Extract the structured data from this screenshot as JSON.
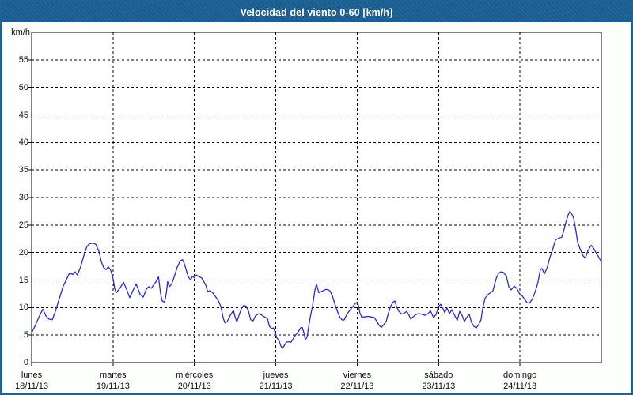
{
  "window": {
    "title": "Velocidad del viento 0-60 [km/h]"
  },
  "colors": {
    "title_bar": "#1D6295",
    "title_text": "#FFFFFF",
    "frame_border": "#1D6295",
    "background": "#FDFFFD",
    "grid": "#000000",
    "text": "#0C0C0C",
    "line": "#2A2AC8"
  },
  "chart_data": {
    "type": "line",
    "title": "Velocidad del viento 0-60 [km/h]",
    "xlabel": "",
    "ylabel": "km/h",
    "ylim": [
      0,
      60
    ],
    "y_ticks": [
      0,
      5,
      10,
      15,
      20,
      25,
      30,
      35,
      40,
      45,
      50,
      55
    ],
    "xlim_hours": [
      0,
      168
    ],
    "grid": true,
    "legend": "none",
    "x_ticks": [
      {
        "hour": 0,
        "day": "lunes",
        "date": "18/11/13"
      },
      {
        "hour": 24,
        "day": "martes",
        "date": "19/11/13"
      },
      {
        "hour": 48,
        "day": "miércoles",
        "date": "20/11/13"
      },
      {
        "hour": 72,
        "day": "jueves",
        "date": "21/11/13"
      },
      {
        "hour": 96,
        "day": "viernes",
        "date": "22/11/13"
      },
      {
        "hour": 120,
        "day": "sábado",
        "date": "23/11/13"
      },
      {
        "hour": 144,
        "day": "domingo",
        "date": "24/11/13"
      }
    ],
    "series": [
      {
        "name": "Velocidad del viento",
        "unit": "km/h",
        "x_unit": "hours_since_mon_00h",
        "points": [
          [
            0,
            5.4
          ],
          [
            1.2,
            6.9
          ],
          [
            2.3,
            8.5
          ],
          [
            3.3,
            9.7
          ],
          [
            4.2,
            8.5
          ],
          [
            5.1,
            7.9
          ],
          [
            6.1,
            7.8
          ],
          [
            7,
            9.3
          ],
          [
            8.2,
            11.7
          ],
          [
            9.3,
            13.9
          ],
          [
            10.5,
            15.4
          ],
          [
            11.2,
            16.3
          ],
          [
            12.1,
            16
          ],
          [
            12.8,
            16.5
          ],
          [
            13.5,
            15.9
          ],
          [
            14.5,
            17.5
          ],
          [
            15.6,
            19.9
          ],
          [
            16.3,
            21.1
          ],
          [
            17,
            21.6
          ],
          [
            18,
            21.7
          ],
          [
            18.9,
            21.5
          ],
          [
            19.8,
            20.3
          ],
          [
            20.5,
            18.4
          ],
          [
            21.2,
            17.3
          ],
          [
            21.9,
            16.9
          ],
          [
            22.6,
            17.4
          ],
          [
            23.3,
            16.8
          ],
          [
            24,
            15.3
          ],
          [
            24.5,
            13.4
          ],
          [
            25,
            12.7
          ],
          [
            26.1,
            13.6
          ],
          [
            27.1,
            14.6
          ],
          [
            28,
            13.3
          ],
          [
            28.9,
            11.8
          ],
          [
            29.9,
            13.1
          ],
          [
            30.8,
            14.3
          ],
          [
            32,
            12.4
          ],
          [
            32.9,
            11.9
          ],
          [
            33.8,
            13.3
          ],
          [
            34.5,
            13.8
          ],
          [
            35.3,
            13.5
          ],
          [
            36.2,
            14.3
          ],
          [
            37,
            15
          ],
          [
            37.4,
            15.6
          ],
          [
            38,
            12.6
          ],
          [
            38.5,
            11.2
          ],
          [
            39.2,
            11
          ],
          [
            39.7,
            12.5
          ],
          [
            40.1,
            14.7
          ],
          [
            40.6,
            13.8
          ],
          [
            41.3,
            14.3
          ],
          [
            42,
            15.5
          ],
          [
            42.9,
            17.3
          ],
          [
            43.8,
            18.5
          ],
          [
            44.5,
            18.7
          ],
          [
            45,
            18
          ],
          [
            45.5,
            17
          ],
          [
            46.2,
            15.6
          ],
          [
            46.9,
            15
          ],
          [
            47.4,
            15.7
          ],
          [
            48,
            15.4
          ],
          [
            48.6,
            15.9
          ],
          [
            49.4,
            15.6
          ],
          [
            50.1,
            15.4
          ],
          [
            50.8,
            14.7
          ],
          [
            51.4,
            14
          ],
          [
            51.9,
            12.9
          ],
          [
            52.6,
            13.1
          ],
          [
            53.5,
            12.6
          ],
          [
            54.2,
            12
          ],
          [
            55.1,
            11.2
          ],
          [
            55.8,
            10.2
          ],
          [
            56.5,
            8.1
          ],
          [
            57,
            7.2
          ],
          [
            57.7,
            7.5
          ],
          [
            58.6,
            8.6
          ],
          [
            59.5,
            9.5
          ],
          [
            60,
            8.3
          ],
          [
            60.5,
            7.4
          ],
          [
            61.2,
            8.7
          ],
          [
            62,
            10
          ],
          [
            62.6,
            10.4
          ],
          [
            63.3,
            10.2
          ],
          [
            63.9,
            9.4
          ],
          [
            64.6,
            7.8
          ],
          [
            65.3,
            7.6
          ],
          [
            66,
            8.5
          ],
          [
            67,
            8.9
          ],
          [
            67.7,
            8.7
          ],
          [
            68.4,
            8.4
          ],
          [
            69,
            8.2
          ],
          [
            69.6,
            7.9
          ],
          [
            70.1,
            6.6
          ],
          [
            70.8,
            6.2
          ],
          [
            71.3,
            6.3
          ],
          [
            71.7,
            5.7
          ],
          [
            72.3,
            4.5
          ],
          [
            73,
            3.9
          ],
          [
            73.5,
            3
          ],
          [
            74,
            2.6
          ],
          [
            74.7,
            3.3
          ],
          [
            75.1,
            3.7
          ],
          [
            75.8,
            3.8
          ],
          [
            76.5,
            3.7
          ],
          [
            77,
            4.2
          ],
          [
            77.7,
            4.9
          ],
          [
            78.6,
            5.6
          ],
          [
            79.3,
            6.3
          ],
          [
            79.8,
            6.4
          ],
          [
            80.3,
            5.4
          ],
          [
            80.7,
            4.2
          ],
          [
            81.2,
            4.6
          ],
          [
            81.7,
            6.5
          ],
          [
            82.1,
            8.1
          ],
          [
            82.8,
            10.2
          ],
          [
            83.5,
            13.1
          ],
          [
            84,
            14.2
          ],
          [
            84.7,
            12.7
          ],
          [
            85.4,
            12.9
          ],
          [
            86.1,
            13.1
          ],
          [
            86.8,
            13.3
          ],
          [
            87.5,
            13.2
          ],
          [
            88,
            13
          ],
          [
            88.7,
            12.1
          ],
          [
            89.4,
            10.7
          ],
          [
            90.3,
            9.1
          ],
          [
            91,
            8.1
          ],
          [
            91.7,
            7.7
          ],
          [
            92.2,
            7.8
          ],
          [
            92.9,
            8.7
          ],
          [
            93.8,
            9.5
          ],
          [
            94.5,
            10
          ],
          [
            95.2,
            10.6
          ],
          [
            96,
            11
          ],
          [
            96.4,
            10.3
          ],
          [
            96.8,
            9
          ],
          [
            97.3,
            8.3
          ],
          [
            98.2,
            8.3
          ],
          [
            99.2,
            8.4
          ],
          [
            100.1,
            8.3
          ],
          [
            101,
            8.2
          ],
          [
            101.7,
            7.6
          ],
          [
            102.4,
            6.8
          ],
          [
            103.1,
            6.4
          ],
          [
            103.8,
            6.9
          ],
          [
            104.5,
            7.4
          ],
          [
            105.2,
            9
          ],
          [
            105.9,
            10.3
          ],
          [
            106.6,
            11
          ],
          [
            107.1,
            11.2
          ],
          [
            107.6,
            10.2
          ],
          [
            108.3,
            9.3
          ],
          [
            109.2,
            8.8
          ],
          [
            109.9,
            9
          ],
          [
            110.6,
            9.3
          ],
          [
            111.3,
            8.6
          ],
          [
            111.8,
            7.9
          ],
          [
            112.5,
            8.3
          ],
          [
            113.2,
            8.7
          ],
          [
            114.1,
            8.9
          ],
          [
            115,
            8.8
          ],
          [
            116,
            8.6
          ],
          [
            116.9,
            8.9
          ],
          [
            117.6,
            9.4
          ],
          [
            118.5,
            8.2
          ],
          [
            119.2,
            8.7
          ],
          [
            120,
            10.2
          ],
          [
            120.6,
            10.6
          ],
          [
            121.3,
            9.8
          ],
          [
            121.8,
            9.1
          ],
          [
            122.5,
            9.9
          ],
          [
            123.2,
            8.9
          ],
          [
            123.9,
            9.6
          ],
          [
            124.8,
            8.5
          ],
          [
            125.5,
            7.7
          ],
          [
            126.2,
            9.3
          ],
          [
            126.9,
            8.6
          ],
          [
            127.6,
            7.5
          ],
          [
            128.3,
            8.2
          ],
          [
            129,
            8.8
          ],
          [
            129.7,
            7.3
          ],
          [
            130.4,
            6.6
          ],
          [
            131.1,
            6.3
          ],
          [
            131.8,
            6.9
          ],
          [
            132.5,
            7.8
          ],
          [
            133,
            9.8
          ],
          [
            133.7,
            11.7
          ],
          [
            134.6,
            12.4
          ],
          [
            135.3,
            12.7
          ],
          [
            136,
            13
          ],
          [
            137,
            15.3
          ],
          [
            137.7,
            16.2
          ],
          [
            138.4,
            16.5
          ],
          [
            139.1,
            16.4
          ],
          [
            140,
            15.7
          ],
          [
            140.7,
            13.8
          ],
          [
            141.4,
            13.2
          ],
          [
            142.3,
            13.9
          ],
          [
            143,
            13.5
          ],
          [
            144,
            12.4
          ],
          [
            144.7,
            12.1
          ],
          [
            145.4,
            11.5
          ],
          [
            146.1,
            10.9
          ],
          [
            146.8,
            10.8
          ],
          [
            147.7,
            11.6
          ],
          [
            148.6,
            13.1
          ],
          [
            149.3,
            14.6
          ],
          [
            150,
            16.9
          ],
          [
            150.5,
            17.1
          ],
          [
            151.2,
            16.1
          ],
          [
            152.1,
            17.4
          ],
          [
            152.8,
            19.1
          ],
          [
            153.5,
            20.3
          ],
          [
            154.5,
            22.3
          ],
          [
            155.4,
            22.6
          ],
          [
            156.3,
            22.8
          ],
          [
            156.8,
            23.7
          ],
          [
            157.5,
            25.4
          ],
          [
            158.2,
            26.8
          ],
          [
            158.7,
            27.5
          ],
          [
            159.1,
            27.2
          ],
          [
            159.8,
            26.3
          ],
          [
            160.3,
            24.7
          ],
          [
            161,
            21.9
          ],
          [
            161.7,
            20.7
          ],
          [
            162.6,
            19.4
          ],
          [
            163.3,
            19
          ],
          [
            164,
            20.3
          ],
          [
            165,
            21.3
          ],
          [
            165.7,
            20.8
          ],
          [
            166.4,
            20
          ],
          [
            167.1,
            19.3
          ],
          [
            167.8,
            18.5
          ]
        ]
      }
    ]
  }
}
